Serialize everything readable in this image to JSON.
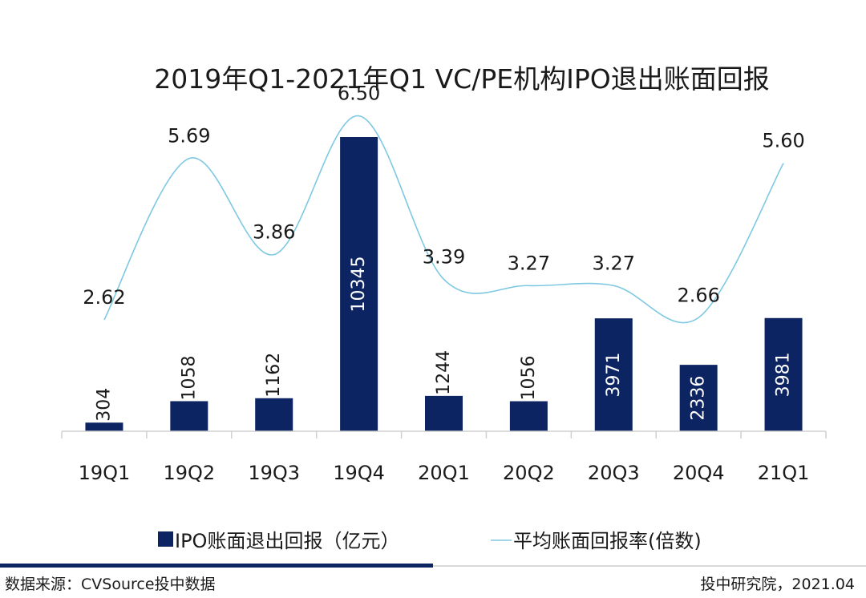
{
  "chart_data": {
    "type": "bar",
    "title": "2019年Q1-2021年Q1 VC/PE机构IPO退出账面回报",
    "categories": [
      "19Q1",
      "19Q2",
      "19Q3",
      "19Q4",
      "20Q1",
      "20Q2",
      "20Q3",
      "20Q4",
      "21Q1"
    ],
    "series": [
      {
        "name": "IPO账面退出回报（亿元）",
        "type": "bar",
        "color": "#0c2461",
        "values": [
          304,
          1058,
          1162,
          10345,
          1244,
          1056,
          3971,
          2336,
          3981
        ],
        "labels": [
          "304",
          "1058",
          "1162",
          "10345",
          "1244",
          "1056",
          "3971",
          "2336",
          "3981"
        ]
      },
      {
        "name": "平均账面回报率(倍数)",
        "type": "line",
        "color": "#7ec8e3",
        "values": [
          2.62,
          5.69,
          3.86,
          6.5,
          3.39,
          3.27,
          3.27,
          2.66,
          5.6
        ],
        "labels": [
          "2.62",
          "5.69",
          "3.86",
          "6.50",
          "3.39",
          "3.27",
          "3.27",
          "2.66",
          "5.60"
        ]
      }
    ],
    "legend": "bottom",
    "grid": false
  },
  "footer": {
    "source": "数据来源：CVSource投中数据",
    "credit": "投中研究院，2021.04"
  },
  "colors": {
    "bar": "#0c2461",
    "line": "#7ec8e3",
    "axis": "#d0d0d0",
    "accent": "#0c2461"
  }
}
